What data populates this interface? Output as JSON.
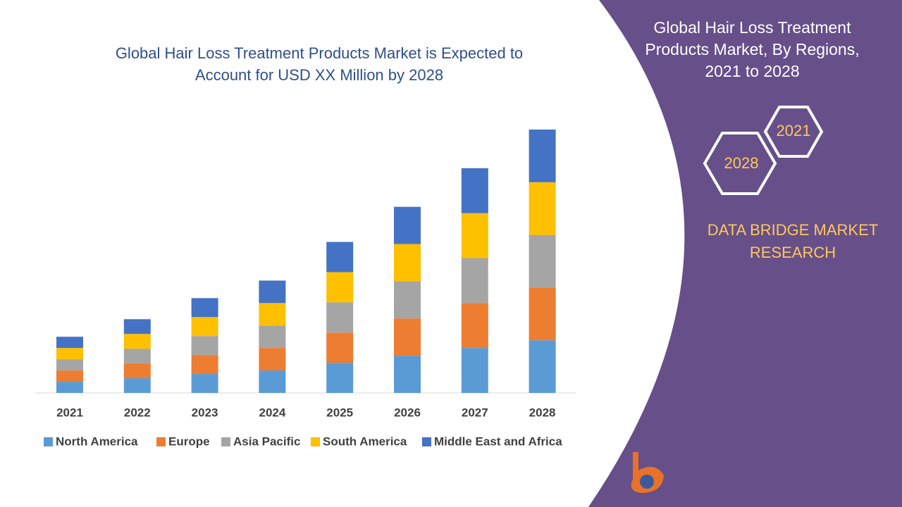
{
  "chart_data": {
    "type": "stacked-bar",
    "title": "Global Hair Loss Treatment Products Market is Expected to Account for USD XX Million by 2028",
    "categories": [
      "2021",
      "2022",
      "2023",
      "2024",
      "2025",
      "2026",
      "2027",
      "2028"
    ],
    "series": [
      {
        "name": "North America",
        "color": "#5b9bd5",
        "values": [
          16,
          21,
          27,
          32,
          43,
          53,
          64,
          75
        ]
      },
      {
        "name": "Europe",
        "color": "#ed7d31",
        "values": [
          16,
          21,
          27,
          32,
          43,
          53,
          64,
          75
        ]
      },
      {
        "name": "Asia Pacific",
        "color": "#a5a5a5",
        "values": [
          16,
          21,
          27,
          32,
          43,
          53,
          64,
          75
        ]
      },
      {
        "name": "South America",
        "color": "#ffc000",
        "values": [
          16,
          21,
          27,
          32,
          43,
          53,
          64,
          75
        ]
      },
      {
        "name": "Middle East and Africa",
        "color": "#4472c4",
        "values": [
          16,
          21,
          27,
          32,
          43,
          53,
          64,
          75
        ]
      }
    ],
    "legend": "bottom"
  },
  "side_panel": {
    "title": "Global Hair Loss Treatment Products Market, By Regions, 2021 to 2028",
    "hex_labels": [
      "2021",
      "2028"
    ],
    "brand": "DATA BRIDGE MARKET RESEARCH"
  },
  "logo": {
    "name": "DATA BRIDGE",
    "tagline": "MARKET RESEARCH"
  }
}
